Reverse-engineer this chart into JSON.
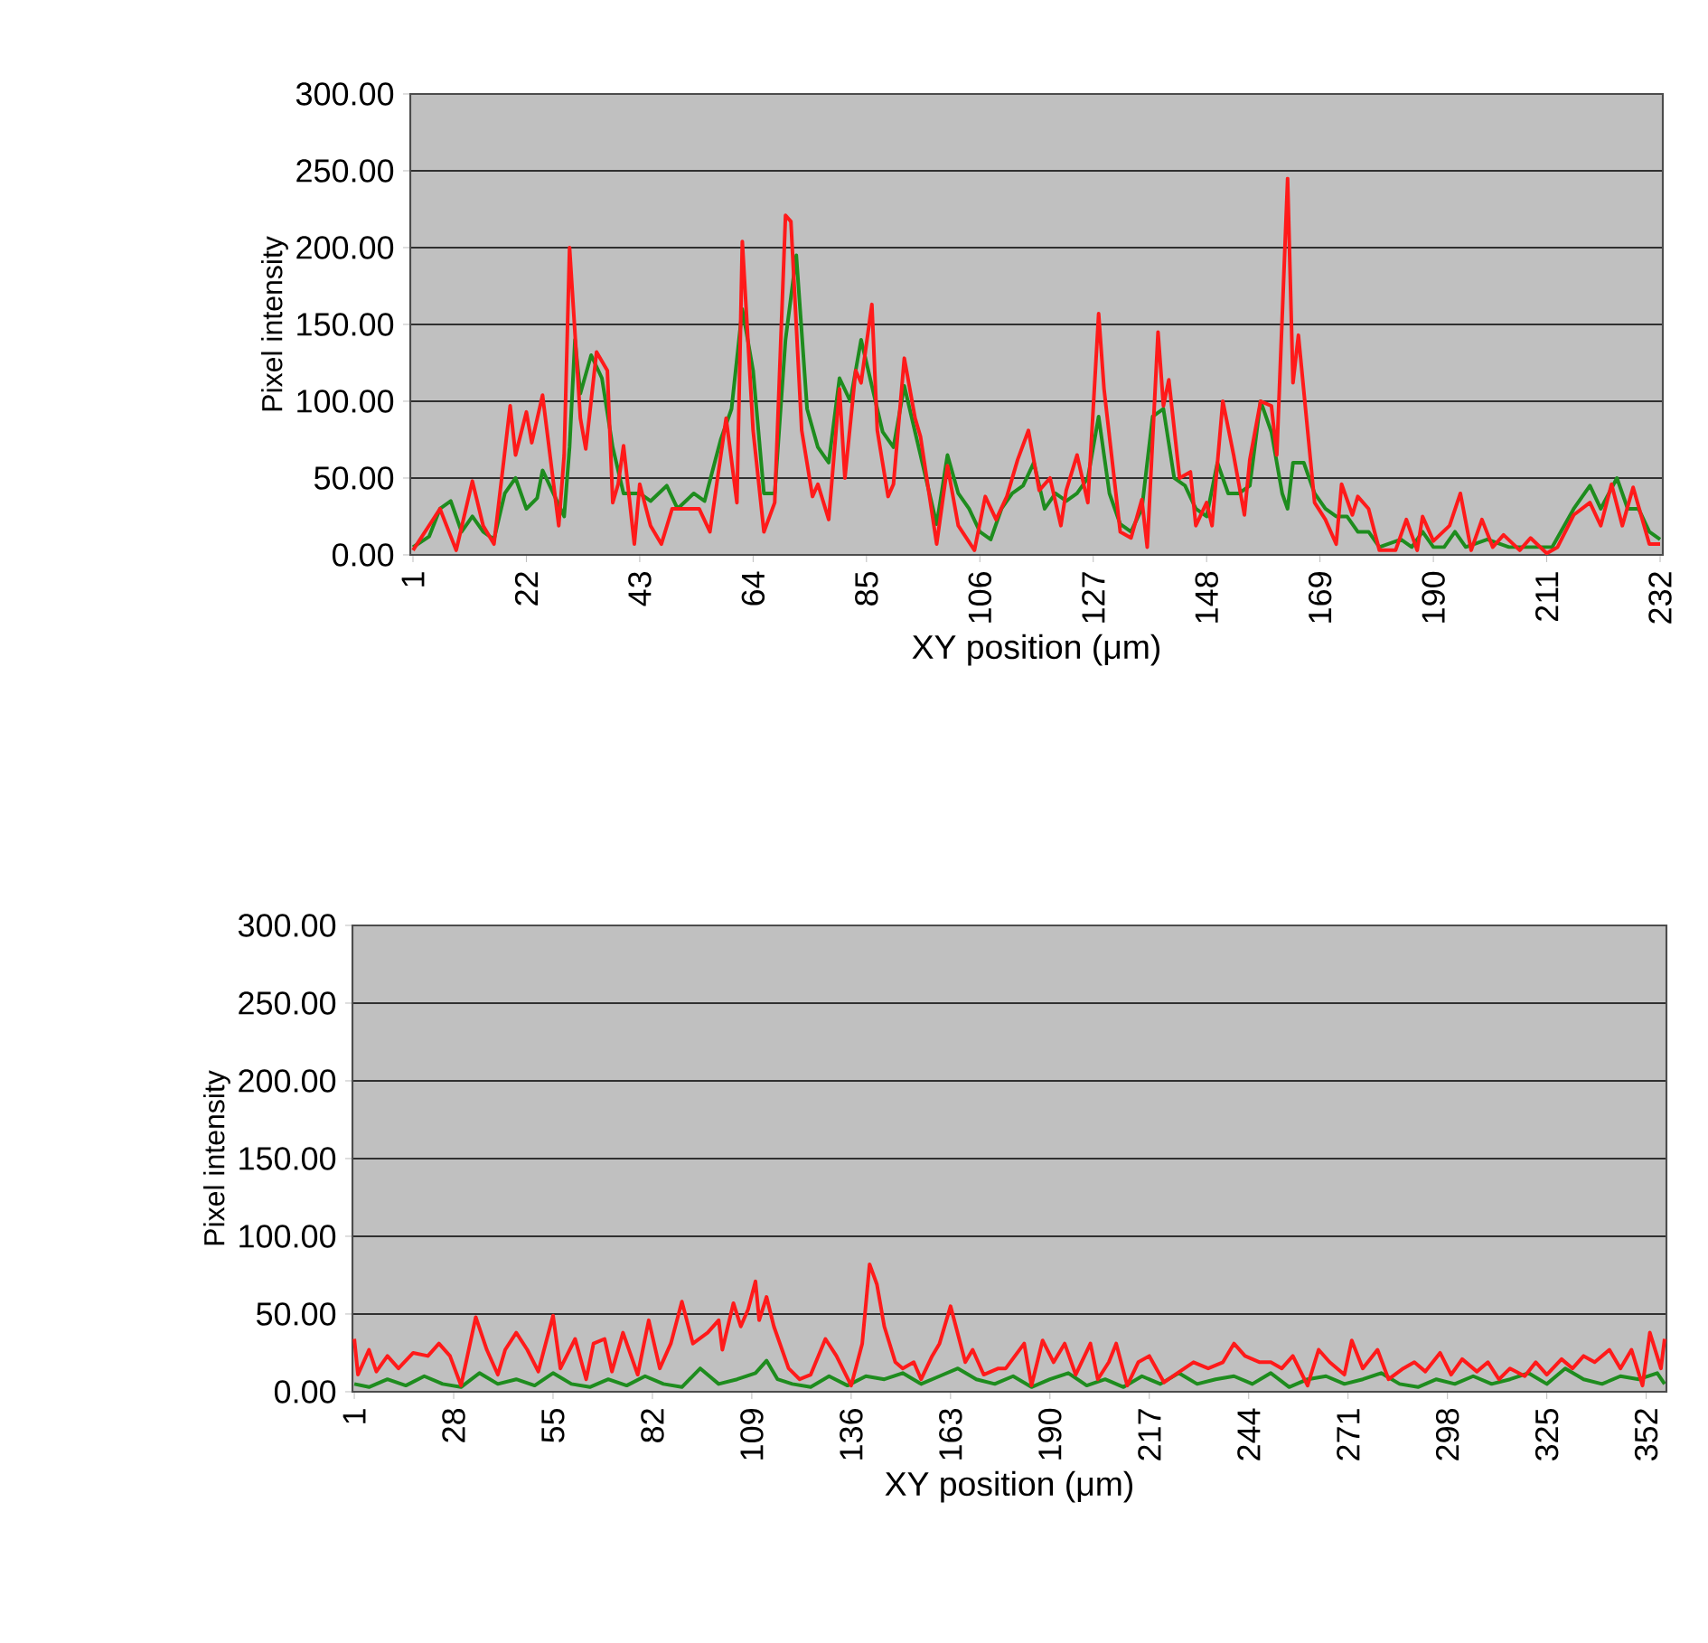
{
  "chart_data": [
    {
      "type": "line",
      "xlabel": "XY position (μm)",
      "ylabel": "Pixel intensity",
      "xlim": [
        0.5,
        232.5
      ],
      "xticks": [
        1,
        22,
        43,
        64,
        85,
        106,
        127,
        148,
        169,
        190,
        211,
        232
      ],
      "ylim": [
        0,
        300
      ],
      "yticks": [
        {
          "value": 0,
          "label": "0.00"
        },
        {
          "value": 50,
          "label": "50.00"
        },
        {
          "value": 100,
          "label": "100.00"
        },
        {
          "value": 150,
          "label": "150.00"
        },
        {
          "value": 200,
          "label": "200.00"
        },
        {
          "value": 250,
          "label": "250.00"
        },
        {
          "value": 300,
          "label": "300.00"
        }
      ],
      "grid": "y",
      "series": [
        {
          "color": "#1e8c1e",
          "x": [
            1,
            4,
            6,
            8,
            10,
            12,
            14,
            16,
            18,
            20,
            22,
            24,
            25,
            27,
            29,
            30,
            31,
            32,
            34,
            36,
            38,
            40,
            43,
            45,
            48,
            50,
            53,
            55,
            58,
            60,
            62,
            64,
            66,
            68,
            70,
            72,
            74,
            76,
            78,
            80,
            82,
            84,
            86,
            88,
            90,
            92,
            94,
            96,
            98,
            100,
            102,
            104,
            106,
            108,
            110,
            112,
            114,
            116,
            118,
            120,
            122,
            124,
            126,
            127,
            128,
            130,
            132,
            134,
            136,
            138,
            140,
            142,
            144,
            146,
            148,
            150,
            152,
            154,
            156,
            158,
            160,
            162,
            163,
            164,
            166,
            168,
            170,
            172,
            174,
            176,
            178,
            180,
            184,
            186,
            188,
            190,
            192,
            194,
            196,
            200,
            204,
            208,
            212,
            216,
            219,
            221,
            224,
            226,
            228,
            230,
            232
          ],
          "values": [
            5,
            12,
            30,
            35,
            15,
            25,
            15,
            10,
            40,
            50,
            30,
            37,
            55,
            40,
            25,
            70,
            140,
            105,
            130,
            115,
            70,
            40,
            40,
            35,
            45,
            30,
            40,
            35,
            75,
            95,
            160,
            120,
            40,
            40,
            140,
            195,
            95,
            70,
            60,
            115,
            100,
            140,
            110,
            80,
            70,
            110,
            80,
            50,
            20,
            65,
            40,
            30,
            15,
            10,
            30,
            40,
            45,
            60,
            30,
            40,
            35,
            40,
            50,
            70,
            90,
            40,
            20,
            15,
            30,
            90,
            95,
            50,
            45,
            30,
            25,
            60,
            40,
            40,
            45,
            100,
            80,
            40,
            30,
            60,
            60,
            40,
            30,
            25,
            25,
            15,
            15,
            5,
            10,
            5,
            15,
            5,
            5,
            15,
            5,
            10,
            5,
            5,
            5,
            30,
            45,
            30,
            50,
            30,
            30,
            15,
            10
          ]
        },
        {
          "color": "#ff1a1a",
          "x": [
            1,
            6,
            9,
            12,
            14,
            16,
            19,
            20,
            22,
            23,
            25,
            28,
            29,
            30,
            32,
            33,
            35,
            37,
            38,
            39,
            40,
            42,
            43,
            45,
            47,
            49,
            54,
            56,
            59,
            61,
            62,
            64,
            66,
            68,
            70,
            71,
            73,
            75,
            76,
            78,
            80,
            81,
            83,
            84,
            86,
            87,
            89,
            90,
            92,
            94,
            95,
            98,
            100,
            102,
            105,
            107,
            109,
            111,
            113,
            115,
            117,
            119,
            121,
            122,
            124,
            126,
            128,
            129,
            132,
            134,
            136,
            137,
            139,
            140,
            141,
            143,
            145,
            146,
            148,
            149,
            151,
            153,
            155,
            156,
            158,
            160,
            161,
            163,
            164,
            165,
            168,
            170,
            172,
            173,
            175,
            176,
            178,
            180,
            183,
            185,
            187,
            188,
            190,
            193,
            195,
            197,
            199,
            201,
            203,
            206,
            208,
            211,
            213,
            216,
            219,
            221,
            223,
            225,
            227,
            230,
            232
          ],
          "values": [
            3,
            30,
            3,
            48,
            19,
            7,
            97,
            65,
            93,
            73,
            104,
            19,
            65,
            200,
            89,
            69,
            132,
            120,
            34,
            46,
            71,
            7,
            46,
            19,
            7,
            30,
            30,
            15,
            89,
            34,
            204,
            81,
            15,
            34,
            221,
            217,
            81,
            38,
            46,
            23,
            108,
            50,
            120,
            112,
            163,
            81,
            38,
            46,
            128,
            89,
            77,
            7,
            58,
            19,
            3,
            38,
            23,
            38,
            62,
            81,
            42,
            50,
            19,
            42,
            65,
            34,
            157,
            108,
            15,
            11,
            36,
            5,
            145,
            97,
            114,
            50,
            54,
            19,
            34,
            19,
            100,
            65,
            26,
            62,
            100,
            97,
            65,
            245,
            112,
            143,
            34,
            23,
            7,
            46,
            26,
            38,
            30,
            3,
            3,
            23,
            3,
            25,
            9,
            19,
            40,
            3,
            23,
            5,
            13,
            3,
            11,
            1,
            5,
            26,
            34,
            19,
            46,
            19,
            44,
            7,
            7
          ]
        }
      ]
    },
    {
      "type": "line",
      "xlabel": "XY position (μm)",
      "ylabel": "Pixel intensity",
      "xlim": [
        0.5,
        357.5
      ],
      "xticks": [
        1,
        28,
        55,
        82,
        109,
        136,
        163,
        190,
        217,
        244,
        271,
        298,
        325,
        352
      ],
      "ylim": [
        0,
        300
      ],
      "yticks": [
        {
          "value": 0,
          "label": "0.00"
        },
        {
          "value": 50,
          "label": "50.00"
        },
        {
          "value": 100,
          "label": "100.00"
        },
        {
          "value": 150,
          "label": "150.00"
        },
        {
          "value": 200,
          "label": "200.00"
        },
        {
          "value": 250,
          "label": "250.00"
        },
        {
          "value": 300,
          "label": "300.00"
        }
      ],
      "grid": "y",
      "series": [
        {
          "color": "#1e8c1e",
          "x": [
            1,
            5,
            10,
            15,
            20,
            25,
            30,
            35,
            40,
            45,
            50,
            55,
            60,
            65,
            70,
            75,
            80,
            85,
            90,
            95,
            100,
            105,
            110,
            113,
            116,
            120,
            125,
            130,
            135,
            140,
            145,
            150,
            155,
            160,
            165,
            170,
            175,
            180,
            185,
            190,
            195,
            200,
            205,
            210,
            215,
            220,
            225,
            230,
            235,
            240,
            245,
            250,
            255,
            260,
            265,
            270,
            275,
            280,
            285,
            290,
            295,
            300,
            305,
            310,
            315,
            320,
            325,
            330,
            335,
            340,
            345,
            350,
            355,
            357
          ],
          "values": [
            5,
            3,
            8,
            4,
            10,
            5,
            3,
            12,
            5,
            8,
            4,
            12,
            5,
            3,
            8,
            4,
            10,
            5,
            3,
            15,
            5,
            8,
            12,
            20,
            8,
            5,
            3,
            10,
            4,
            10,
            8,
            12,
            5,
            10,
            15,
            8,
            5,
            10,
            3,
            8,
            12,
            4,
            8,
            3,
            10,
            5,
            12,
            5,
            8,
            10,
            5,
            12,
            3,
            8,
            10,
            5,
            8,
            12,
            5,
            3,
            8,
            5,
            10,
            5,
            8,
            12,
            5,
            15,
            8,
            5,
            10,
            8,
            12,
            5
          ]
        },
        {
          "color": "#ff1a1a",
          "x": [
            1,
            2,
            5,
            7,
            10,
            13,
            17,
            21,
            24,
            27,
            30,
            34,
            37,
            40,
            42,
            45,
            48,
            51,
            55,
            57,
            61,
            64,
            66,
            69,
            71,
            74,
            78,
            81,
            84,
            87,
            90,
            93,
            97,
            100,
            101,
            104,
            106,
            108,
            110,
            111,
            113,
            115,
            119,
            122,
            125,
            129,
            132,
            136,
            139,
            141,
            143,
            145,
            148,
            150,
            153,
            155,
            158,
            160,
            163,
            167,
            169,
            172,
            176,
            178,
            183,
            185,
            188,
            191,
            194,
            197,
            201,
            203,
            206,
            208,
            211,
            214,
            217,
            221,
            224,
            229,
            233,
            237,
            240,
            243,
            247,
            250,
            253,
            256,
            260,
            263,
            266,
            270,
            272,
            275,
            279,
            282,
            286,
            289,
            292,
            296,
            299,
            302,
            306,
            309,
            312,
            315,
            319,
            322,
            325,
            329,
            332,
            335,
            338,
            342,
            345,
            348,
            351,
            353,
            356,
            357
          ],
          "values": [
            34,
            11,
            27,
            13,
            23,
            15,
            25,
            23,
            31,
            23,
            4,
            48,
            27,
            11,
            27,
            38,
            27,
            13,
            49,
            15,
            34,
            8,
            31,
            34,
            13,
            38,
            11,
            46,
            15,
            31,
            58,
            31,
            38,
            46,
            27,
            57,
            42,
            53,
            71,
            46,
            61,
            42,
            15,
            8,
            11,
            34,
            23,
            4,
            31,
            82,
            69,
            42,
            19,
            15,
            19,
            8,
            23,
            31,
            55,
            19,
            27,
            11,
            15,
            15,
            31,
            4,
            33,
            19,
            31,
            11,
            31,
            8,
            19,
            31,
            4,
            19,
            23,
            6,
            11,
            19,
            15,
            19,
            31,
            23,
            19,
            19,
            15,
            23,
            4,
            27,
            19,
            11,
            33,
            15,
            27,
            8,
            15,
            19,
            13,
            25,
            11,
            21,
            13,
            19,
            8,
            15,
            10,
            19,
            11,
            21,
            15,
            23,
            19,
            27,
            15,
            27,
            4,
            38,
            15,
            34
          ]
        }
      ]
    }
  ]
}
